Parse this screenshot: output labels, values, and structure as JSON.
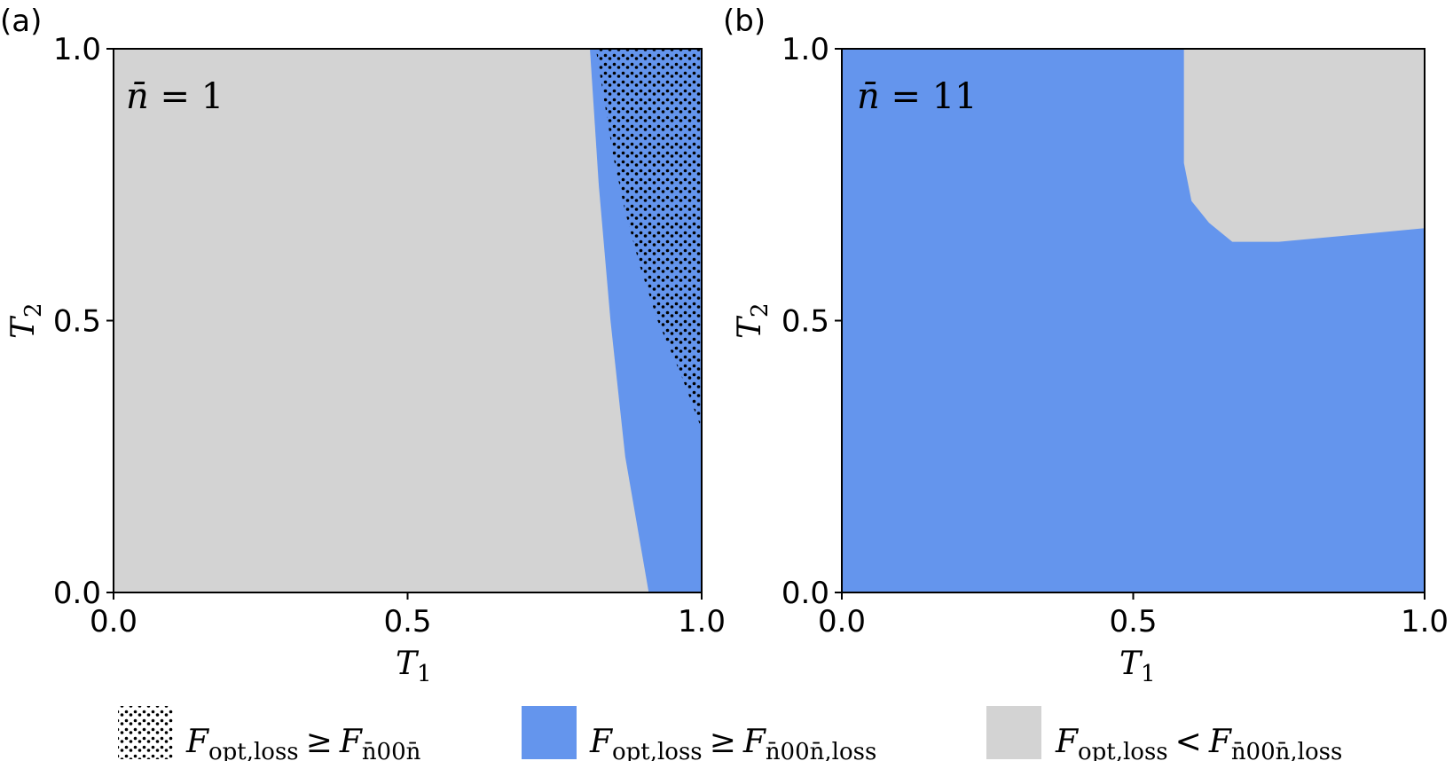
{
  "chart_data": [
    {
      "panel": "(a)",
      "type": "heatmap",
      "annotation_prefix": "n̄ = ",
      "annotation_value": "1",
      "xlabel_main": "T",
      "xlabel_sub": "1",
      "ylabel_main": "T",
      "ylabel_sub": "2",
      "xlim": [
        0.0,
        1.0
      ],
      "ylim": [
        0.0,
        1.0
      ],
      "xticks": [
        "0.0",
        "0.5",
        "1.0"
      ],
      "yticks": [
        "0.0",
        "0.5",
        "1.0"
      ],
      "regions": [
        {
          "legend_index": 2,
          "description": "background",
          "fill": "#d3d3d3"
        },
        {
          "legend_index": 1,
          "boundary_T1_at_T2": [
            [
              0.0,
              0.91
            ],
            [
              0.25,
              0.87
            ],
            [
              0.5,
              0.845
            ],
            [
              0.75,
              0.825
            ],
            [
              1.0,
              0.81
            ]
          ],
          "fill": "#6495ed"
        },
        {
          "legend_index": 0,
          "boundary_T1_at_T2": [
            [
              0.3,
              1.0
            ],
            [
              0.4,
              0.965
            ],
            [
              0.5,
              0.925
            ],
            [
              0.6,
              0.895
            ],
            [
              0.7,
              0.87
            ],
            [
              0.8,
              0.85
            ],
            [
              0.9,
              0.835
            ],
            [
              1.0,
              0.82
            ]
          ],
          "fill": "hatch-dots"
        }
      ]
    },
    {
      "panel": "(b)",
      "type": "heatmap",
      "annotation_prefix": "n̄ = ",
      "annotation_value": "11",
      "xlabel_main": "T",
      "xlabel_sub": "1",
      "ylabel_main": "T",
      "ylabel_sub": "2",
      "xlim": [
        0.0,
        1.0
      ],
      "ylim": [
        0.0,
        1.0
      ],
      "xticks": [
        "0.0",
        "0.5",
        "1.0"
      ],
      "yticks": [
        "0.0",
        "0.5",
        "1.0"
      ],
      "regions": [
        {
          "legend_index": 1,
          "description": "background",
          "fill": "#6495ed"
        },
        {
          "legend_index": 2,
          "boundary": [
            [
              0.587,
              1.0
            ],
            [
              0.587,
              0.79
            ],
            [
              0.6,
              0.72
            ],
            [
              0.63,
              0.68
            ],
            [
              0.67,
              0.645
            ],
            [
              0.75,
              0.645
            ],
            [
              0.85,
              0.655
            ],
            [
              1.0,
              0.67
            ],
            [
              1.0,
              1.0
            ]
          ],
          "fill": "#d3d3d3"
        }
      ]
    }
  ],
  "legend": [
    {
      "swatch": "hatch-dots",
      "lhs": "F",
      "lhs_sub": "opt,loss",
      "op": "≥",
      "rhs": "F",
      "rhs_sub": "n̄00n̄"
    },
    {
      "swatch": "#6495ed",
      "lhs": "F",
      "lhs_sub": "opt,loss",
      "op": "≥",
      "rhs": "F",
      "rhs_sub": "n̄00n̄,loss"
    },
    {
      "swatch": "#d3d3d3",
      "lhs": "F",
      "lhs_sub": "opt,loss",
      "op": "<",
      "rhs": "F",
      "rhs_sub": "n̄00n̄,loss"
    }
  ],
  "colors": {
    "blue": "#6495ed",
    "gray": "#d3d3d3",
    "dots": "#000000"
  }
}
